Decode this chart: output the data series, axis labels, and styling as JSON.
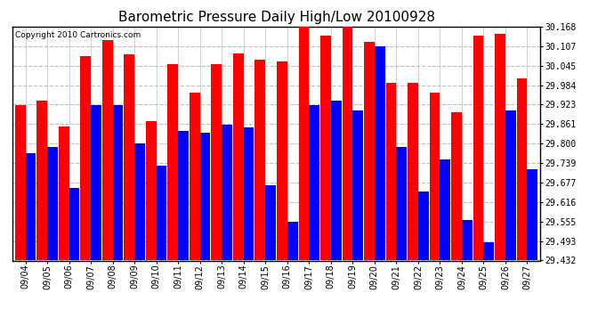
{
  "title": "Barometric Pressure Daily High/Low 20100928",
  "copyright": "Copyright 2010 Cartronics.com",
  "dates": [
    "09/04",
    "09/05",
    "09/06",
    "09/07",
    "09/08",
    "09/09",
    "09/10",
    "09/11",
    "09/12",
    "09/13",
    "09/14",
    "09/15",
    "09/16",
    "09/17",
    "09/18",
    "09/19",
    "09/20",
    "09/21",
    "09/22",
    "09/23",
    "09/24",
    "09/25",
    "09/26",
    "09/27"
  ],
  "highs": [
    29.92,
    29.935,
    29.855,
    30.075,
    30.125,
    30.08,
    29.87,
    30.05,
    29.96,
    30.05,
    30.085,
    30.065,
    30.06,
    30.2,
    30.14,
    30.235,
    30.12,
    29.99,
    29.99,
    29.96,
    29.9,
    30.14,
    30.145,
    30.005
  ],
  "lows": [
    29.77,
    29.79,
    29.66,
    29.92,
    29.92,
    29.8,
    29.73,
    29.84,
    29.835,
    29.86,
    29.85,
    29.67,
    29.555,
    29.92,
    29.935,
    29.905,
    30.105,
    29.79,
    29.65,
    29.75,
    29.56,
    29.49,
    29.905,
    29.72
  ],
  "high_color": "#ff0000",
  "low_color": "#0000ff",
  "bg_color": "#ffffff",
  "plot_bg_color": "#ffffff",
  "grid_color": "#c0c0c0",
  "ylim_min": 29.432,
  "ylim_max": 30.168,
  "yticks": [
    29.432,
    29.493,
    29.555,
    29.616,
    29.677,
    29.739,
    29.8,
    29.861,
    29.923,
    29.984,
    30.045,
    30.107,
    30.168
  ],
  "bar_width": 0.48,
  "title_fontsize": 11,
  "tick_fontsize": 7,
  "copyright_fontsize": 6.5
}
